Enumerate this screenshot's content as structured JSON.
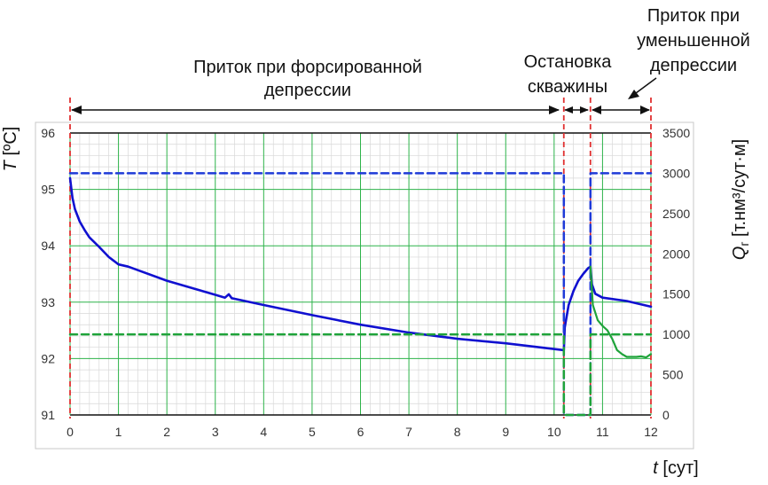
{
  "chart_data": {
    "type": "line",
    "x": {
      "label_italic": "t",
      "label_rest": " [сут]",
      "range": [
        0,
        12
      ],
      "ticks": [
        "0",
        "1",
        "2",
        "3",
        "4",
        "5",
        "6",
        "7",
        "8",
        "9",
        "10",
        "11",
        "12"
      ]
    },
    "y_left": {
      "label_italic": "T",
      "label_rest": " [ºC]",
      "range": [
        91,
        96
      ],
      "ticks": [
        "91",
        "92",
        "93",
        "94",
        "95",
        "96"
      ]
    },
    "y_right": {
      "label_q": "Q",
      "label_sub": "г",
      "label_rest": " [т.нм³/сут·м]",
      "range": [
        0,
        3500
      ],
      "ticks": [
        "0",
        "500",
        "1000",
        "1500",
        "2000",
        "2500",
        "3000",
        "3500"
      ]
    },
    "grid": true,
    "annotations": {
      "forced": [
        "Приток при форсированной",
        "депрессии"
      ],
      "shutin": [
        "Остановка",
        "скважины"
      ],
      "reduced": [
        "Приток при",
        "уменьшенной",
        "депрессии"
      ]
    },
    "phase_boundaries": [
      0,
      10.2,
      10.75,
      12
    ],
    "colors": {
      "temperature": "#1010d0",
      "rate_dashed": "#1e3ad8",
      "green": "#1fa33a",
      "boundary": "#e03030"
    },
    "series": [
      {
        "axis": "left",
        "style": "solid",
        "color": "#1010d0",
        "x": [
          0,
          0.05,
          0.1,
          0.2,
          0.3,
          0.4,
          0.6,
          0.8,
          1.0,
          1.2,
          2,
          3,
          3.2,
          3.28,
          3.34,
          3.4,
          4,
          5,
          6,
          7,
          8,
          9,
          10.2,
          10.2,
          10.22,
          10.3,
          10.4,
          10.5,
          10.6,
          10.7,
          10.75,
          10.75,
          10.78,
          10.85,
          11.0,
          11.5,
          12.0
        ],
        "y": [
          95.2,
          94.85,
          94.65,
          94.43,
          94.28,
          94.15,
          93.98,
          93.8,
          93.67,
          93.63,
          93.38,
          93.13,
          93.08,
          93.14,
          93.07,
          93.06,
          92.95,
          92.77,
          92.6,
          92.46,
          92.35,
          92.27,
          92.15,
          92.15,
          92.55,
          92.95,
          93.2,
          93.38,
          93.5,
          93.6,
          93.63,
          93.63,
          93.32,
          93.15,
          93.08,
          93.02,
          92.92
        ]
      },
      {
        "axis": "right",
        "style": "dashed",
        "color": "#1e3ad8",
        "x": [
          0,
          10.2,
          10.2,
          10.75,
          10.75,
          12
        ],
        "y": [
          3000,
          3000,
          0,
          0,
          3000,
          3000
        ]
      },
      {
        "axis": "right",
        "style": "dashed",
        "color": "#1fa33a",
        "x": [
          0,
          10.2,
          10.2,
          10.75,
          10.75,
          12
        ],
        "y": [
          1000,
          1000,
          0,
          0,
          1000,
          1000
        ]
      },
      {
        "axis": "left",
        "style": "solid",
        "color": "#1fa33a",
        "x": [
          10.75,
          10.8,
          10.9,
          11.0,
          11.1,
          11.2,
          11.3,
          11.4,
          11.5,
          11.6,
          11.7,
          11.8,
          11.9,
          12.0
        ],
        "y": [
          93.63,
          92.95,
          92.68,
          92.58,
          92.5,
          92.35,
          92.15,
          92.08,
          92.03,
          92.03,
          92.03,
          92.04,
          92.02,
          92.08
        ]
      }
    ]
  }
}
